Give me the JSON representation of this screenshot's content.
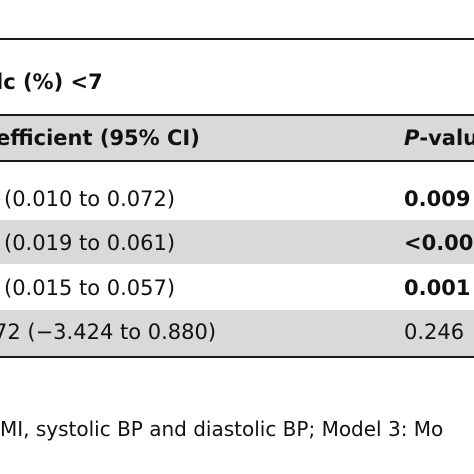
{
  "table": {
    "group_header": "lc (%) <7",
    "columns": {
      "coefficient": "efficient (95% CI)",
      "p_value_italic": "P",
      "p_value_rest": "-valu"
    },
    "rows": [
      {
        "ci": "(0.010 to 0.072)",
        "p": "0.009",
        "p_bold": true,
        "shaded": false
      },
      {
        "ci": "(0.019 to 0.061)",
        "p": "<0.00",
        "p_bold": true,
        "shaded": true
      },
      {
        "ci": "(0.015 to 0.057)",
        "p": "0.001",
        "p_bold": true,
        "shaded": false
      },
      {
        "ci": "72 (−3.424 to 0.880)",
        "p": "0.246",
        "p_bold": false,
        "shaded": true
      }
    ],
    "footnote": "MI, systolic BP and diastolic BP; Model 3: Mo"
  },
  "colors": {
    "shade": "#d9d9d9",
    "rule": "#1a1a1a",
    "text": "#111111"
  }
}
